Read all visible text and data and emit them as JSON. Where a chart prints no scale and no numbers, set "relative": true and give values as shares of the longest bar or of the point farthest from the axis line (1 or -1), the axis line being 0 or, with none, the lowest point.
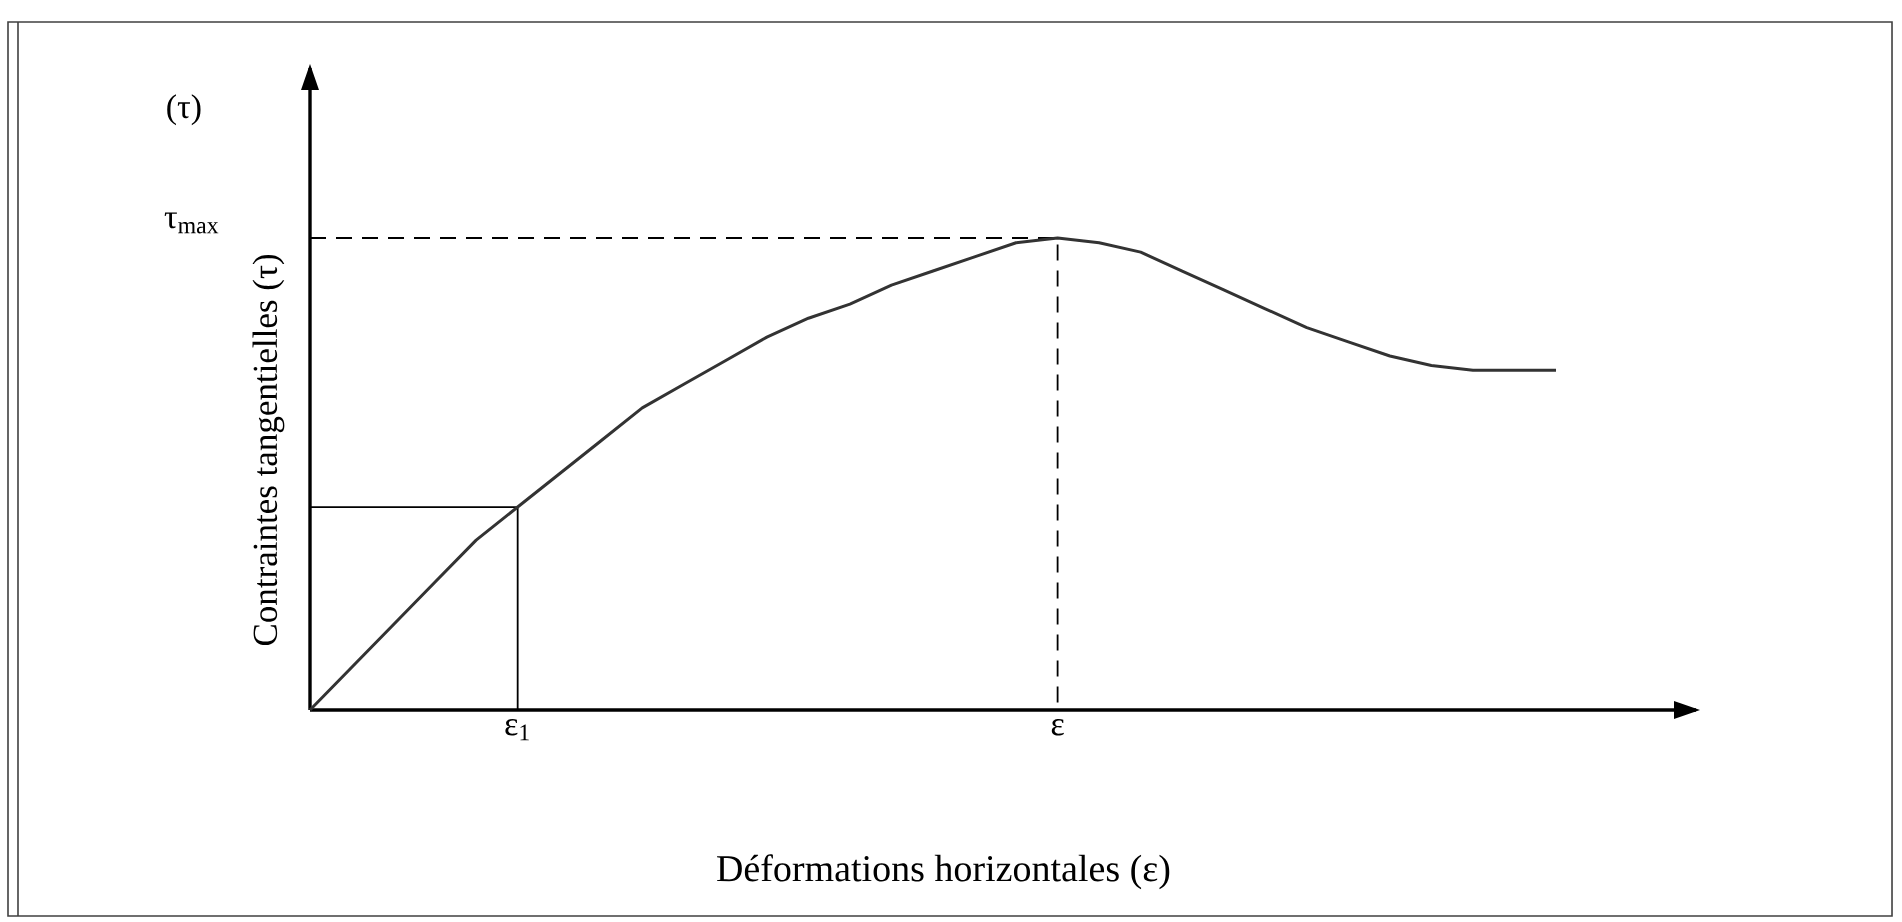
{
  "chart_data": {
    "type": "line",
    "relative": true,
    "xlabel": "Déformations horizontales (ε)",
    "ylabel": "Contraintes tangentielles (τ)",
    "annotations": [
      "(τ)"
    ],
    "categories": [
      null,
      null,
      null,
      null,
      null,
      "ε$_{1}$",
      null,
      null,
      null,
      null,
      null,
      null,
      null,
      null,
      null,
      null,
      null,
      null,
      "ε",
      null,
      null,
      null,
      null,
      null,
      null,
      null,
      null,
      null,
      null,
      null,
      null
    ],
    "series": [
      {
        "color": "#333333",
        "values": [
          0,
          0.09,
          0.18,
          0.27,
          0.36,
          0.43,
          0.5,
          0.57,
          0.64,
          0.69,
          0.74,
          0.79,
          0.83,
          0.86,
          0.9,
          0.93,
          0.96,
          0.99,
          1,
          0.99,
          0.97,
          0.93,
          0.89,
          0.85,
          0.81,
          0.78,
          0.75,
          0.73,
          0.72,
          0.72,
          0.72
        ]
      }
    ],
    "ref_lines": [
      {
        "axis": "y",
        "value": 1,
        "label": "τ$_{max}$",
        "line_style": "dashed"
      },
      {
        "axis": "y",
        "value": 0.43,
        "line_style": "solid"
      }
    ]
  }
}
